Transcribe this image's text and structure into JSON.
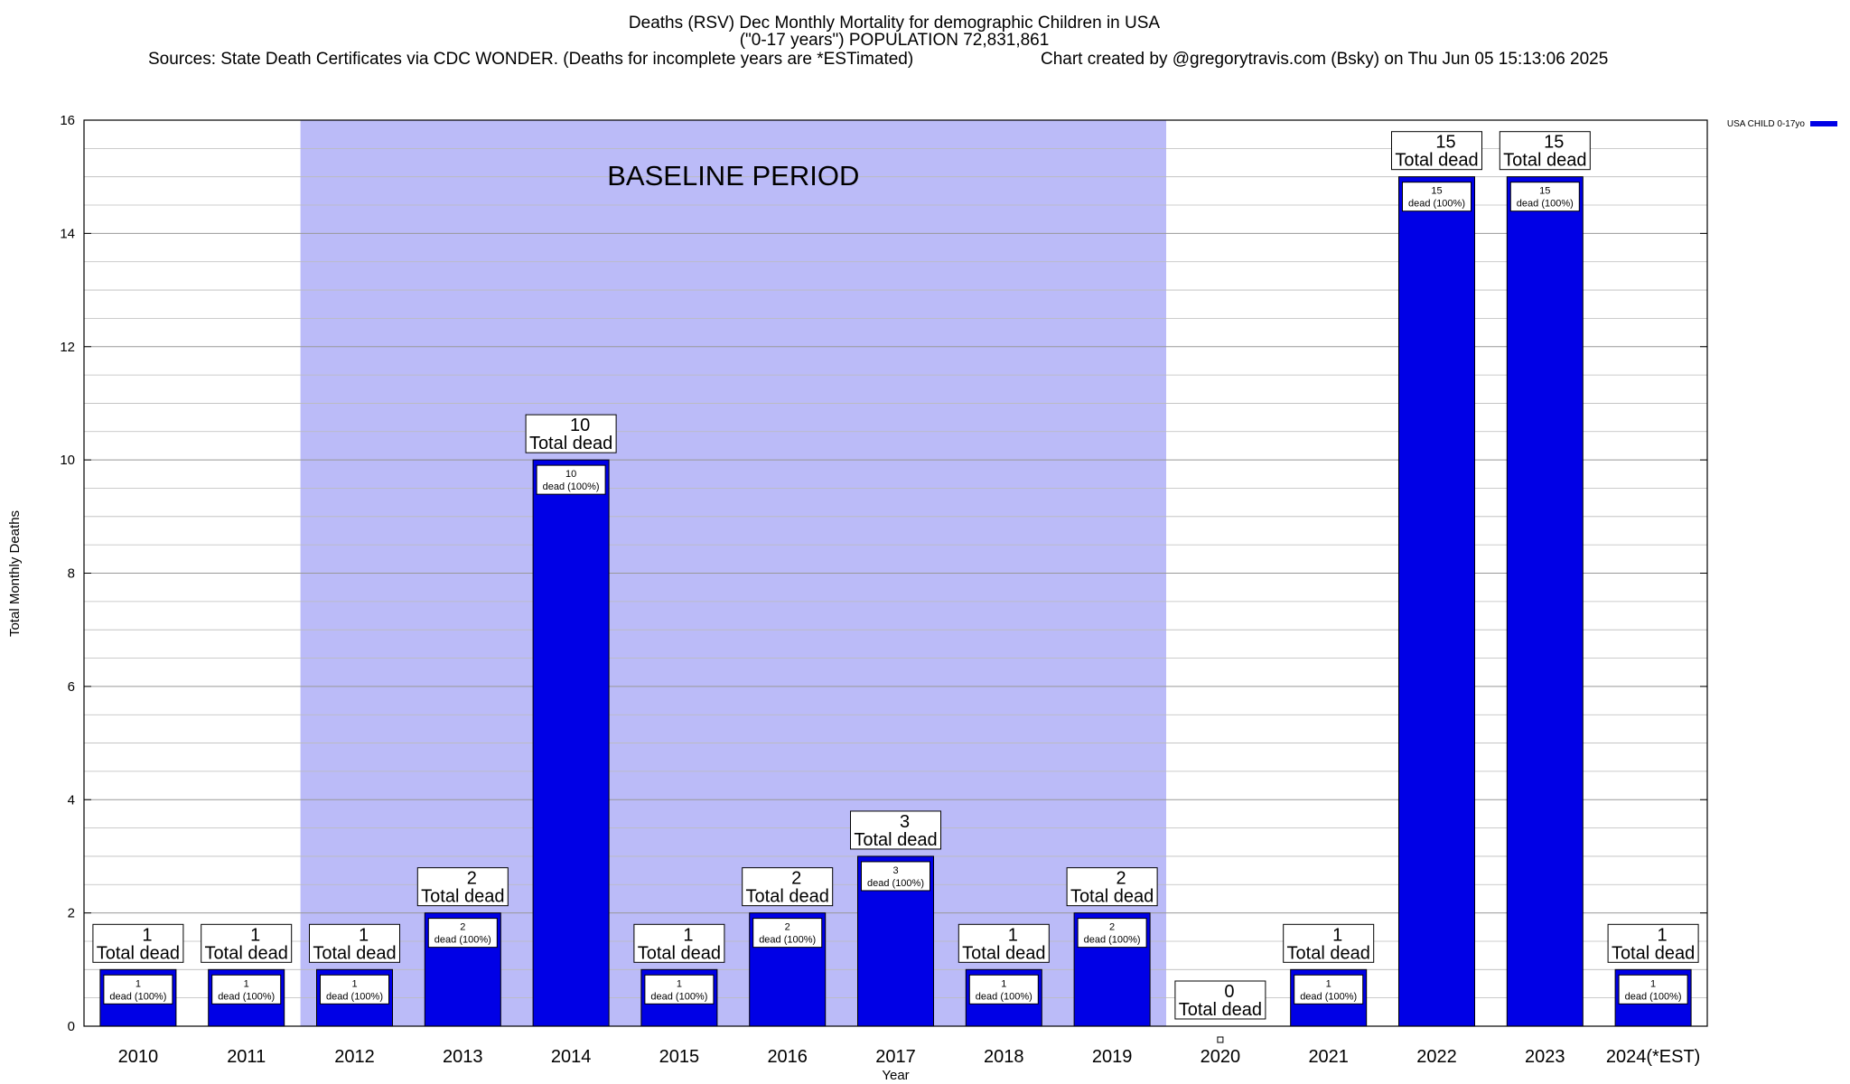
{
  "header": {
    "title_line1": "Deaths (RSV) Dec Monthly Mortality for demographic Children in USA",
    "title_line2": "(\"0-17 years\") POPULATION 72,831,861",
    "sources": "Sources: State Death Certificates via CDC WONDER. (Deaths for incomplete years are *ESTimated)",
    "credit": "Chart created by @gregorytravis.com (Bsky) on Thu Jun 05 15:13:06 2025"
  },
  "annotation": {
    "baseline_label": "BASELINE PERIOD",
    "baseline_start": "2012",
    "baseline_end": "2019"
  },
  "colors": {
    "bar": "#0000e6",
    "baseline_band": "#bbbbf8",
    "grid": "#aaaaaa"
  },
  "chart_data": {
    "type": "bar",
    "title": "Deaths (RSV) Dec Monthly Mortality for demographic Children in USA",
    "xlabel": "Year",
    "ylabel": "Total Monthly Deaths",
    "ylim": [
      0,
      16
    ],
    "yticks": [
      0,
      2,
      4,
      6,
      8,
      10,
      12,
      14,
      16
    ],
    "grid": true,
    "legend_position": "top-right",
    "categories": [
      "2010",
      "2011",
      "2012",
      "2013",
      "2014",
      "2015",
      "2016",
      "2017",
      "2018",
      "2019",
      "2020",
      "2021",
      "2022",
      "2023",
      "2024(*EST)"
    ],
    "series": [
      {
        "name": "USA CHILD 0-17yo",
        "values": [
          1,
          1,
          1,
          2,
          10,
          1,
          2,
          3,
          1,
          2,
          0,
          1,
          15,
          15,
          1
        ]
      }
    ],
    "total_label_suffix": "Total dead",
    "inner_label_suffix": "dead (100%)"
  }
}
